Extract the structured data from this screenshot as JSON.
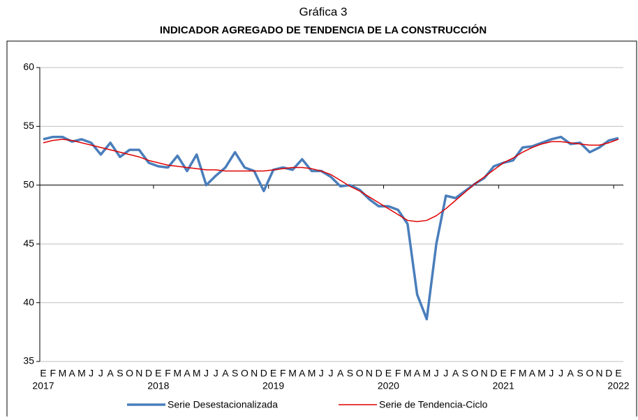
{
  "chart_data": {
    "type": "line",
    "title": "Gráfica 3",
    "subtitle": "INDICADOR AGREGADO DE TENDENCIA DE LA CONSTRUCCIÓN",
    "categories": [
      "E",
      "F",
      "M",
      "A",
      "M",
      "J",
      "J",
      "A",
      "S",
      "O",
      "N",
      "D",
      "E",
      "F",
      "M",
      "A",
      "M",
      "J",
      "J",
      "A",
      "S",
      "O",
      "N",
      "D",
      "E",
      "F",
      "M",
      "A",
      "M",
      "J",
      "J",
      "A",
      "S",
      "O",
      "N",
      "D",
      "E",
      "F",
      "M",
      "A",
      "M",
      "J",
      "J",
      "A",
      "S",
      "O",
      "N",
      "D",
      "E",
      "F",
      "M",
      "A",
      "M",
      "J",
      "J",
      "A",
      "S",
      "O",
      "N",
      "D",
      "E"
    ],
    "years": [
      "2017",
      null,
      null,
      null,
      null,
      null,
      null,
      null,
      null,
      null,
      null,
      null,
      "2018",
      null,
      null,
      null,
      null,
      null,
      null,
      null,
      null,
      null,
      null,
      null,
      "2019",
      null,
      null,
      null,
      null,
      null,
      null,
      null,
      null,
      null,
      null,
      null,
      "2020",
      null,
      null,
      null,
      null,
      null,
      null,
      null,
      null,
      null,
      null,
      null,
      "2021",
      null,
      null,
      null,
      null,
      null,
      null,
      null,
      null,
      null,
      null,
      null,
      "2022"
    ],
    "series": [
      {
        "name": "Serie Desestacionalizada",
        "color": "#4a7ebb",
        "width": 3.5,
        "values": [
          53.9,
          54.1,
          54.1,
          53.7,
          53.9,
          53.6,
          52.6,
          53.6,
          52.4,
          53.0,
          53.0,
          51.9,
          51.6,
          51.5,
          52.5,
          51.2,
          52.6,
          50.0,
          50.8,
          51.5,
          52.8,
          51.5,
          51.2,
          49.5,
          51.3,
          51.5,
          51.3,
          52.2,
          51.2,
          51.2,
          50.7,
          49.9,
          50.0,
          49.6,
          48.8,
          48.2,
          48.2,
          47.9,
          46.7,
          40.7,
          38.6,
          45.0,
          49.1,
          48.9,
          49.5,
          50.1,
          50.6,
          51.6,
          51.9,
          52.1,
          53.2,
          53.3,
          53.6,
          53.9,
          54.1,
          53.5,
          53.6,
          52.8,
          53.2,
          53.8,
          54.0
        ]
      },
      {
        "name": "Serie de Tendencia-Ciclo",
        "color": "#e00000",
        "width": 1.5,
        "values": [
          53.6,
          53.8,
          53.9,
          53.8,
          53.6,
          53.4,
          53.2,
          53.0,
          52.8,
          52.6,
          52.4,
          52.1,
          51.9,
          51.7,
          51.6,
          51.5,
          51.4,
          51.3,
          51.3,
          51.2,
          51.2,
          51.2,
          51.2,
          51.2,
          51.3,
          51.4,
          51.5,
          51.5,
          51.4,
          51.2,
          50.9,
          50.4,
          49.9,
          49.5,
          49.0,
          48.5,
          48.0,
          47.5,
          47.0,
          46.9,
          47.0,
          47.4,
          48.0,
          48.7,
          49.4,
          50.1,
          50.7,
          51.3,
          51.9,
          52.3,
          52.8,
          53.2,
          53.5,
          53.7,
          53.7,
          53.6,
          53.5,
          53.4,
          53.4,
          53.6,
          53.9
        ]
      }
    ],
    "ylim": [
      35,
      60
    ],
    "yticks": [
      35,
      40,
      45,
      50,
      55,
      60
    ],
    "grid": true,
    "x_axis_at": 50,
    "legend": "bottom"
  }
}
